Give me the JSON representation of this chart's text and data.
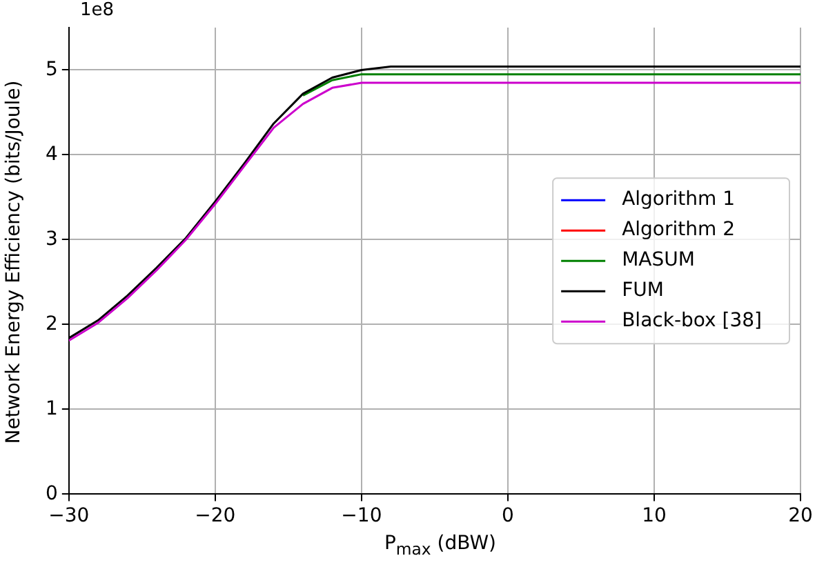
{
  "chart_data": {
    "type": "line",
    "xlabel": "P$_{max}$ (dBW)",
    "ylabel": "Network Energy Efficiency (bits/Joule)",
    "annotations": [
      "1e8"
    ],
    "x": [
      -30,
      -28,
      -26,
      -24,
      -22,
      -20,
      -18,
      -16,
      -14,
      -12,
      -10,
      -8,
      20
    ],
    "xlim": [
      -30,
      20
    ],
    "xticks": [
      -30,
      -20,
      -10,
      0,
      10,
      20
    ],
    "ylim": [
      0,
      5.5
    ],
    "yticks": [
      0,
      1,
      2,
      3,
      4,
      5
    ],
    "grid": true,
    "legend": "right",
    "line_style": "solid",
    "marker": "none",
    "series": [
      {
        "name": "Algorithm 1",
        "color": "#0000ff",
        "values": [
          null,
          null,
          null,
          null,
          null,
          null,
          null,
          null,
          null,
          null,
          null,
          null,
          null
        ]
      },
      {
        "name": "Algorithm 2",
        "color": "#ff0000",
        "values": [
          null,
          null,
          null,
          null,
          null,
          null,
          null,
          null,
          null,
          null,
          null,
          null,
          null
        ]
      },
      {
        "name": "MASUM",
        "color": "#008000",
        "values": [
          null,
          null,
          null,
          null,
          null,
          null,
          null,
          null,
          4.7,
          4.88,
          4.95,
          4.95,
          4.95
        ]
      },
      {
        "name": "FUM",
        "color": "#000000",
        "values": [
          1.84,
          2.05,
          2.34,
          2.67,
          3.02,
          3.45,
          3.9,
          4.37,
          4.72,
          4.91,
          5.0,
          5.04,
          5.04
        ]
      },
      {
        "name": "Black-box [38]",
        "color": "#cc00cc",
        "values": [
          1.81,
          2.02,
          2.31,
          2.64,
          3.0,
          3.42,
          3.87,
          4.32,
          4.6,
          4.79,
          4.85,
          4.85,
          4.85
        ]
      }
    ]
  }
}
